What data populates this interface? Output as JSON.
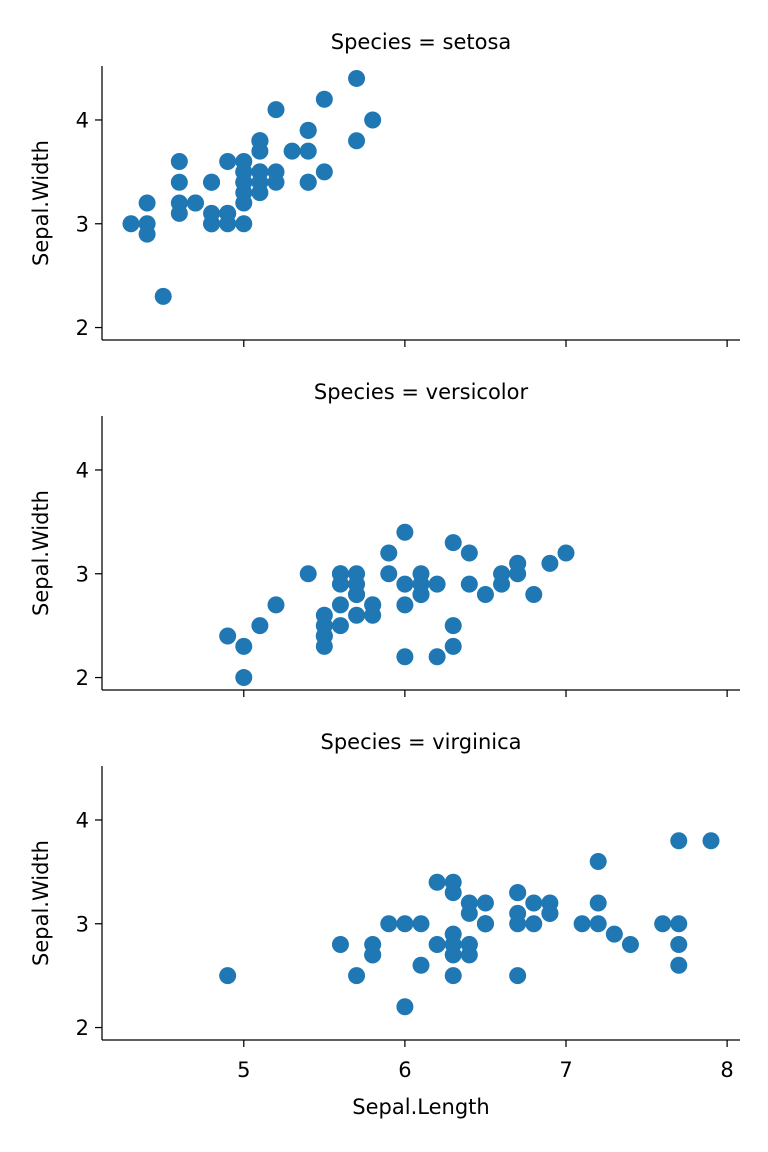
{
  "chart_data": [
    {
      "type": "scatter",
      "title": "Species = setosa",
      "xlabel": "",
      "ylabel": "Sepal.Width",
      "xlim": [
        4.12,
        8.08
      ],
      "ylim": [
        1.88,
        4.52
      ],
      "x_ticks": [
        5,
        6,
        7,
        8
      ],
      "y_ticks": [
        2,
        3,
        4
      ],
      "x_tick_labels_visible": false,
      "marker_color": "#1f77b4",
      "points": [
        [
          5.1,
          3.5
        ],
        [
          4.9,
          3.0
        ],
        [
          4.7,
          3.2
        ],
        [
          4.6,
          3.1
        ],
        [
          5.0,
          3.6
        ],
        [
          5.4,
          3.9
        ],
        [
          4.6,
          3.4
        ],
        [
          5.0,
          3.4
        ],
        [
          4.4,
          2.9
        ],
        [
          4.9,
          3.1
        ],
        [
          5.4,
          3.7
        ],
        [
          4.8,
          3.4
        ],
        [
          4.8,
          3.0
        ],
        [
          4.3,
          3.0
        ],
        [
          5.8,
          4.0
        ],
        [
          5.7,
          4.4
        ],
        [
          5.4,
          3.9
        ],
        [
          5.1,
          3.5
        ],
        [
          5.7,
          3.8
        ],
        [
          5.1,
          3.8
        ],
        [
          5.4,
          3.4
        ],
        [
          5.1,
          3.7
        ],
        [
          4.6,
          3.6
        ],
        [
          5.1,
          3.3
        ],
        [
          4.8,
          3.4
        ],
        [
          5.0,
          3.0
        ],
        [
          5.0,
          3.4
        ],
        [
          5.2,
          3.5
        ],
        [
          5.2,
          3.4
        ],
        [
          4.7,
          3.2
        ],
        [
          4.8,
          3.1
        ],
        [
          5.4,
          3.4
        ],
        [
          5.2,
          4.1
        ],
        [
          5.5,
          4.2
        ],
        [
          4.9,
          3.1
        ],
        [
          5.0,
          3.2
        ],
        [
          5.5,
          3.5
        ],
        [
          4.9,
          3.6
        ],
        [
          4.4,
          3.0
        ],
        [
          5.1,
          3.4
        ],
        [
          5.0,
          3.5
        ],
        [
          4.5,
          2.3
        ],
        [
          4.4,
          3.2
        ],
        [
          5.0,
          3.5
        ],
        [
          5.1,
          3.8
        ],
        [
          4.8,
          3.0
        ],
        [
          5.1,
          3.8
        ],
        [
          4.6,
          3.2
        ],
        [
          5.3,
          3.7
        ],
        [
          5.0,
          3.3
        ]
      ]
    },
    {
      "type": "scatter",
      "title": "Species = versicolor",
      "xlabel": "",
      "ylabel": "Sepal.Width",
      "xlim": [
        4.12,
        8.08
      ],
      "ylim": [
        1.88,
        4.52
      ],
      "x_ticks": [
        5,
        6,
        7,
        8
      ],
      "y_ticks": [
        2,
        3,
        4
      ],
      "x_tick_labels_visible": false,
      "marker_color": "#1f77b4",
      "points": [
        [
          7.0,
          3.2
        ],
        [
          6.4,
          3.2
        ],
        [
          6.9,
          3.1
        ],
        [
          5.5,
          2.3
        ],
        [
          6.5,
          2.8
        ],
        [
          5.7,
          2.8
        ],
        [
          6.3,
          3.3
        ],
        [
          4.9,
          2.4
        ],
        [
          6.6,
          2.9
        ],
        [
          5.2,
          2.7
        ],
        [
          5.0,
          2.0
        ],
        [
          5.9,
          3.0
        ],
        [
          6.0,
          2.2
        ],
        [
          6.1,
          2.9
        ],
        [
          5.6,
          2.9
        ],
        [
          6.7,
          3.1
        ],
        [
          5.6,
          3.0
        ],
        [
          5.8,
          2.7
        ],
        [
          6.2,
          2.2
        ],
        [
          5.6,
          2.5
        ],
        [
          5.9,
          3.2
        ],
        [
          6.1,
          2.8
        ],
        [
          6.3,
          2.5
        ],
        [
          6.1,
          2.8
        ],
        [
          6.4,
          2.9
        ],
        [
          6.6,
          3.0
        ],
        [
          6.8,
          2.8
        ],
        [
          6.7,
          3.0
        ],
        [
          6.0,
          2.9
        ],
        [
          5.7,
          2.6
        ],
        [
          5.5,
          2.4
        ],
        [
          5.5,
          2.4
        ],
        [
          5.8,
          2.7
        ],
        [
          6.0,
          2.7
        ],
        [
          5.4,
          3.0
        ],
        [
          6.0,
          3.4
        ],
        [
          6.7,
          3.1
        ],
        [
          6.3,
          2.3
        ],
        [
          5.6,
          3.0
        ],
        [
          5.5,
          2.5
        ],
        [
          5.5,
          2.6
        ],
        [
          6.1,
          3.0
        ],
        [
          5.8,
          2.6
        ],
        [
          5.0,
          2.3
        ],
        [
          5.6,
          2.7
        ],
        [
          5.7,
          3.0
        ],
        [
          5.7,
          2.9
        ],
        [
          6.2,
          2.9
        ],
        [
          5.1,
          2.5
        ],
        [
          5.7,
          2.8
        ]
      ]
    },
    {
      "type": "scatter",
      "title": "Species = virginica",
      "xlabel": "Sepal.Length",
      "ylabel": "Sepal.Width",
      "xlim": [
        4.12,
        8.08
      ],
      "ylim": [
        1.88,
        4.52
      ],
      "x_ticks": [
        5,
        6,
        7,
        8
      ],
      "y_ticks": [
        2,
        3,
        4
      ],
      "x_tick_labels_visible": true,
      "marker_color": "#1f77b4",
      "points": [
        [
          6.3,
          3.3
        ],
        [
          5.8,
          2.7
        ],
        [
          7.1,
          3.0
        ],
        [
          6.3,
          2.9
        ],
        [
          6.5,
          3.0
        ],
        [
          7.6,
          3.0
        ],
        [
          4.9,
          2.5
        ],
        [
          7.3,
          2.9
        ],
        [
          6.7,
          2.5
        ],
        [
          7.2,
          3.6
        ],
        [
          6.5,
          3.2
        ],
        [
          6.4,
          2.7
        ],
        [
          6.8,
          3.0
        ],
        [
          5.7,
          2.5
        ],
        [
          5.8,
          2.8
        ],
        [
          6.4,
          3.2
        ],
        [
          6.5,
          3.0
        ],
        [
          7.7,
          3.8
        ],
        [
          7.7,
          2.6
        ],
        [
          6.0,
          2.2
        ],
        [
          6.9,
          3.2
        ],
        [
          5.6,
          2.8
        ],
        [
          7.7,
          2.8
        ],
        [
          6.3,
          2.7
        ],
        [
          6.7,
          3.3
        ],
        [
          7.2,
          3.2
        ],
        [
          6.2,
          2.8
        ],
        [
          6.1,
          3.0
        ],
        [
          6.4,
          2.8
        ],
        [
          7.2,
          3.0
        ],
        [
          7.4,
          2.8
        ],
        [
          7.9,
          3.8
        ],
        [
          6.4,
          2.8
        ],
        [
          6.3,
          2.8
        ],
        [
          6.1,
          2.6
        ],
        [
          7.7,
          3.0
        ],
        [
          6.3,
          3.4
        ],
        [
          6.4,
          3.1
        ],
        [
          6.0,
          3.0
        ],
        [
          6.9,
          3.1
        ],
        [
          6.7,
          3.1
        ],
        [
          6.9,
          3.1
        ],
        [
          5.8,
          2.7
        ],
        [
          6.8,
          3.2
        ],
        [
          6.7,
          3.3
        ],
        [
          6.7,
          3.0
        ],
        [
          6.3,
          2.5
        ],
        [
          6.5,
          3.0
        ],
        [
          6.2,
          3.4
        ],
        [
          5.9,
          3.0
        ]
      ]
    }
  ]
}
